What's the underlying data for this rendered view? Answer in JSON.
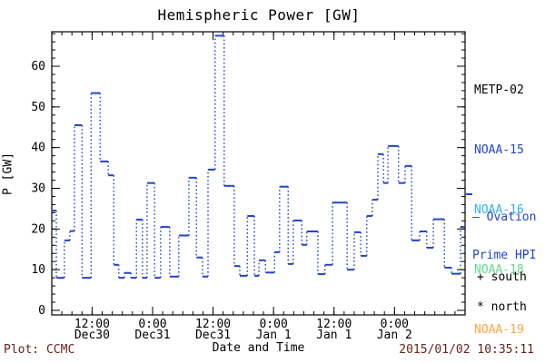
{
  "title": "Hemispheric Power [GW]",
  "footer": {
    "left": "Plot: CCMC",
    "right": "2015/01/02 10:35:11",
    "color": "#66231d"
  },
  "legend": {
    "satellites": [
      {
        "label": "METP-02",
        "color": "#000000"
      },
      {
        "label": "NOAA-15",
        "color": "#2244cc"
      },
      {
        "label": "NOAA-16",
        "color": "#33b4e4"
      },
      {
        "label": "NOAA-18",
        "color": "#5fdd8a"
      },
      {
        "label": "NOAA-19",
        "color": "#ffa53c"
      }
    ],
    "ovation": {
      "line1": "— Ovation",
      "line2": "Prime HPI",
      "color": "#2244cc"
    },
    "markers": [
      {
        "symbol": "+",
        "label": "south"
      },
      {
        "symbol": "*",
        "label": "north"
      }
    ]
  },
  "chart_data": {
    "type": "line",
    "subtype": "steps (solid plateau tops, dotted vertical risers)",
    "title": "Hemispheric Power [GW]",
    "xlabel": "Date and Time",
    "ylabel": "P [GW]",
    "x_unit": "hours from axis origin (~04:00 UT Dec 30 2014)",
    "xlim": [
      0,
      82
    ],
    "ylim": [
      0,
      68.5
    ],
    "grid": false,
    "legend_position": "right",
    "y_major_ticks": [
      0,
      10,
      20,
      30,
      40,
      50,
      60
    ],
    "y_minor_step": 2,
    "x_minor_step_h": 2,
    "x_major_ticks": [
      {
        "h": 8,
        "time": "12:00",
        "date": "Dec30"
      },
      {
        "h": 20,
        "time": "0:00",
        "date": "Dec31"
      },
      {
        "h": 32,
        "time": "12:00",
        "date": "Dec31"
      },
      {
        "h": 44,
        "time": "0:00",
        "date": "Jan 1"
      },
      {
        "h": 56,
        "time": "12:00",
        "date": "Jan 1"
      },
      {
        "h": 68,
        "time": "0:00",
        "date": "Jan 2"
      }
    ],
    "series": [
      {
        "name": "Ovation Prime HPI (NOAA/METOP satellite passes)",
        "color": "#2244cc",
        "steps_h_gw": [
          [
            0.0,
            24.5
          ],
          [
            0.9,
            8.0
          ],
          [
            2.5,
            17.2
          ],
          [
            3.6,
            19.5
          ],
          [
            4.5,
            45.5
          ],
          [
            6.0,
            8.0
          ],
          [
            7.8,
            53.4
          ],
          [
            9.6,
            36.6
          ],
          [
            11.2,
            33.2
          ],
          [
            12.3,
            11.2
          ],
          [
            13.3,
            8.0
          ],
          [
            14.4,
            9.2
          ],
          [
            15.7,
            8.0
          ],
          [
            16.8,
            22.3
          ],
          [
            18.0,
            8.0
          ],
          [
            18.9,
            31.3
          ],
          [
            20.4,
            8.0
          ],
          [
            21.6,
            20.5
          ],
          [
            23.4,
            8.3
          ],
          [
            25.2,
            18.4
          ],
          [
            27.2,
            32.6
          ],
          [
            28.7,
            13.0
          ],
          [
            29.9,
            8.3
          ],
          [
            31.0,
            34.6
          ],
          [
            32.4,
            67.5
          ],
          [
            34.2,
            30.6
          ],
          [
            36.2,
            10.9
          ],
          [
            37.3,
            8.5
          ],
          [
            38.8,
            23.2
          ],
          [
            40.2,
            8.5
          ],
          [
            41.1,
            12.3
          ],
          [
            42.4,
            9.3
          ],
          [
            44.2,
            14.3
          ],
          [
            45.2,
            30.4
          ],
          [
            46.9,
            11.4
          ],
          [
            47.9,
            22.1
          ],
          [
            49.6,
            16.1
          ],
          [
            50.6,
            19.4
          ],
          [
            52.8,
            8.9
          ],
          [
            54.2,
            11.2
          ],
          [
            55.7,
            26.5
          ],
          [
            58.6,
            10.0
          ],
          [
            60.0,
            19.2
          ],
          [
            61.3,
            13.4
          ],
          [
            62.5,
            23.2
          ],
          [
            63.6,
            27.2
          ],
          [
            64.7,
            38.4
          ],
          [
            65.8,
            31.3
          ],
          [
            66.7,
            40.4
          ],
          [
            68.8,
            31.3
          ],
          [
            70.1,
            35.5
          ],
          [
            71.4,
            17.2
          ],
          [
            73.0,
            19.4
          ],
          [
            74.4,
            15.4
          ],
          [
            75.7,
            22.4
          ],
          [
            77.9,
            10.5
          ],
          [
            79.3,
            9.0
          ],
          [
            81.1,
            20.5
          ]
        ]
      }
    ]
  }
}
